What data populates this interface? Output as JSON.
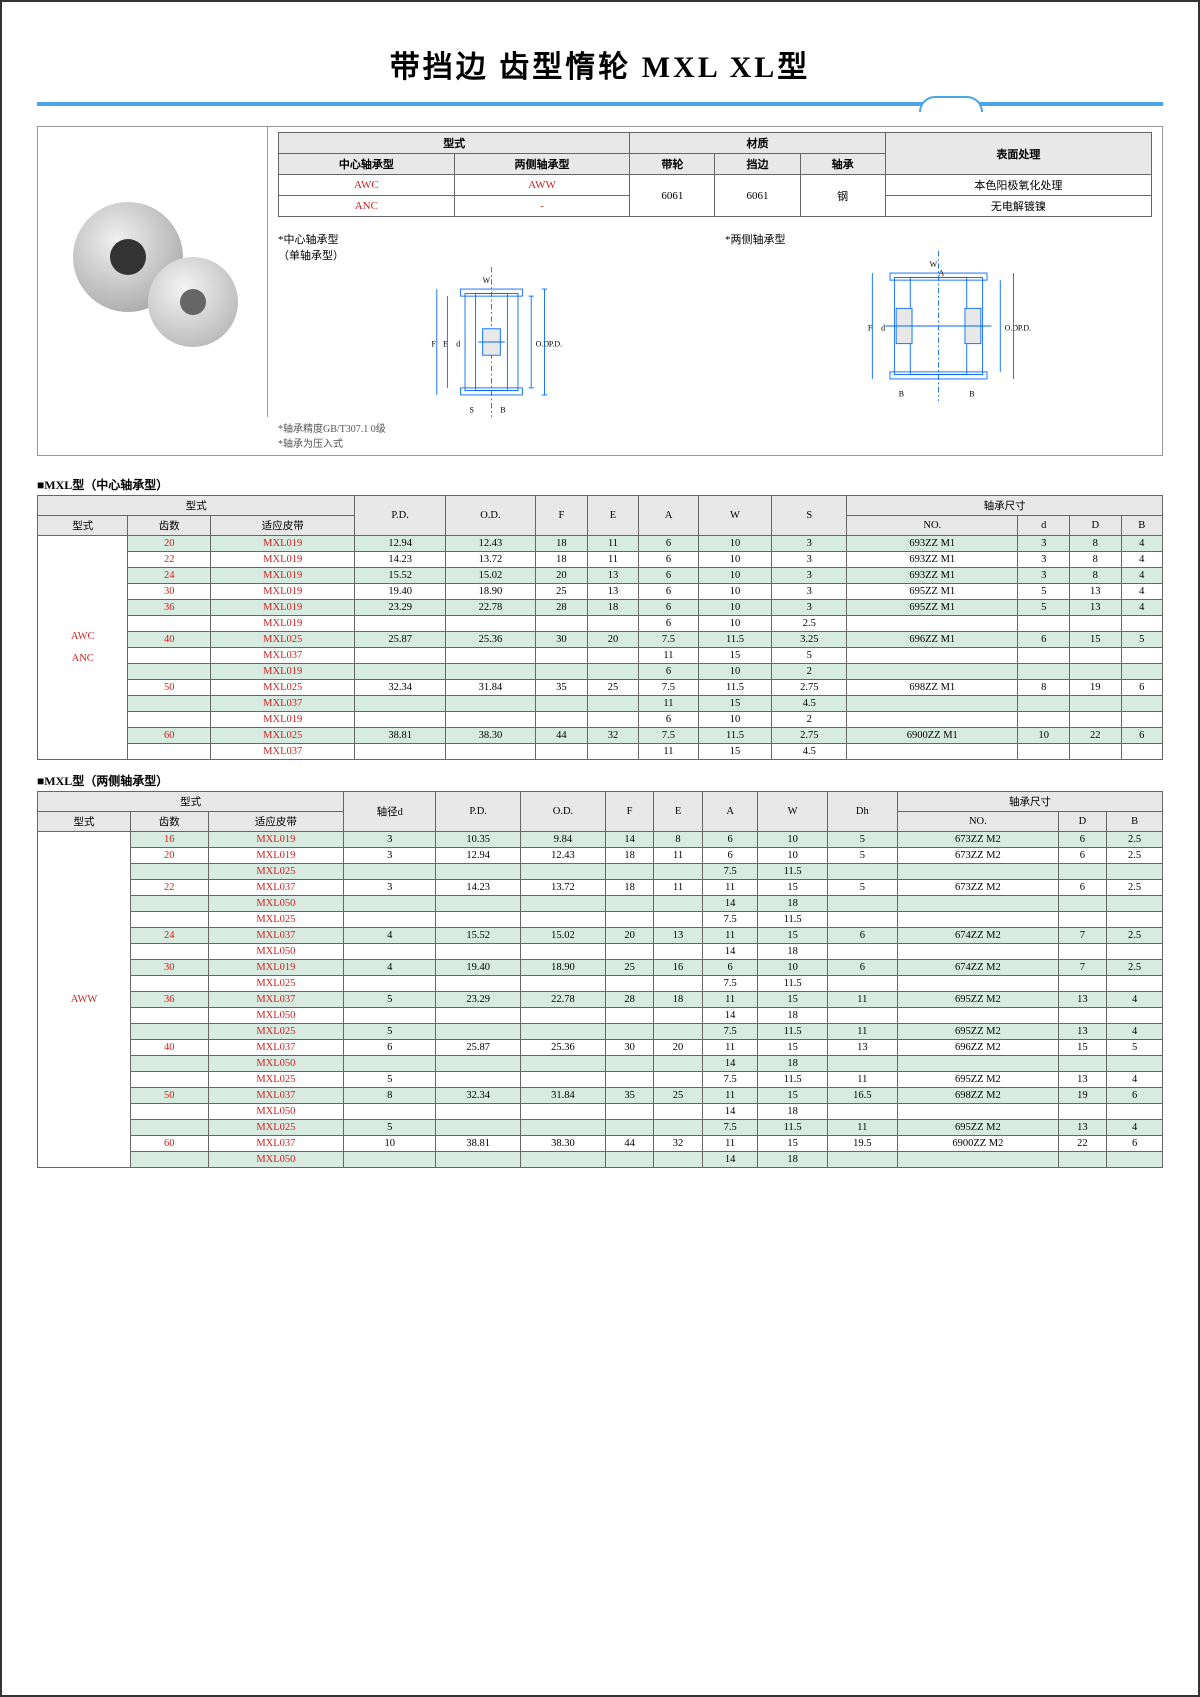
{
  "title": "带挡边 齿型惰轮 MXL XL型",
  "materialTable": {
    "headers": {
      "type": "型式",
      "center": "中心轴承型",
      "side": "两侧轴承型",
      "belt": "带轮",
      "flange": "挡边",
      "bearing": "轴承",
      "material": "材质",
      "surface": "表面处理"
    },
    "row1": {
      "c": "AWC",
      "s": "AWW",
      "belt": "6061",
      "flange": "6061",
      "bearing": "钢",
      "surf": "本色阳极氧化处理"
    },
    "row2": {
      "c": "ANC",
      "s": "-",
      "surf": "无电解镀镍"
    }
  },
  "diagLabels": {
    "center": "*中心轴承型\n（单轴承型）",
    "side": "*两侧轴承型",
    "dims": {
      "W": "W",
      "A": "A",
      "F": "F",
      "d": "d",
      "E": "E",
      "OD": "O.D.",
      "PD": "P.D.",
      "B": "B",
      "S": "S"
    }
  },
  "footnotes": {
    "f1": "*轴承精度GB/T307.1  0级",
    "f2": "*轴承为压入式"
  },
  "sec1Title": "■MXL型（中心轴承型）",
  "t1Headers": {
    "type": "型式",
    "form": "型式",
    "teeth": "齿数",
    "belt": "适应皮带",
    "PD": "P.D.",
    "OD": "O.D.",
    "F": "F",
    "E": "E",
    "A": "A",
    "W": "W",
    "S": "S",
    "bearing": "轴承尺寸",
    "NO": "NO.",
    "d": "d",
    "D": "D",
    "B": "B"
  },
  "t1TypeCol": "AWC\n\nANC",
  "t1Rows": [
    {
      "alt": true,
      "teeth": "20",
      "belt": "MXL019",
      "pd": "12.94",
      "od": "12.43",
      "f": "18",
      "e": "11",
      "a": "6",
      "w": "10",
      "s": "3",
      "no": "693ZZ  M1",
      "d": "3",
      "D": "8",
      "B": "4"
    },
    {
      "alt": false,
      "teeth": "22",
      "belt": "MXL019",
      "pd": "14.23",
      "od": "13.72",
      "f": "18",
      "e": "11",
      "a": "6",
      "w": "10",
      "s": "3",
      "no": "693ZZ  M1",
      "d": "3",
      "D": "8",
      "B": "4"
    },
    {
      "alt": true,
      "teeth": "24",
      "belt": "MXL019",
      "pd": "15.52",
      "od": "15.02",
      "f": "20",
      "e": "13",
      "a": "6",
      "w": "10",
      "s": "3",
      "no": "693ZZ  M1",
      "d": "3",
      "D": "8",
      "B": "4"
    },
    {
      "alt": false,
      "teeth": "30",
      "belt": "MXL019",
      "pd": "19.40",
      "od": "18.90",
      "f": "25",
      "e": "13",
      "a": "6",
      "w": "10",
      "s": "3",
      "no": "695ZZ  M1",
      "d": "5",
      "D": "13",
      "B": "4"
    },
    {
      "alt": true,
      "teeth": "36",
      "belt": "MXL019",
      "pd": "23.29",
      "od": "22.78",
      "f": "28",
      "e": "18",
      "a": "6",
      "w": "10",
      "s": "3",
      "no": "695ZZ  M1",
      "d": "5",
      "D": "13",
      "B": "4"
    },
    {
      "alt": false,
      "teeth": "",
      "belt": "MXL019",
      "pd": "",
      "od": "",
      "f": "",
      "e": "",
      "a": "6",
      "w": "10",
      "s": "2.5",
      "no": "",
      "d": "",
      "D": "",
      "B": ""
    },
    {
      "alt": true,
      "teeth": "40",
      "belt": "MXL025",
      "pd": "25.87",
      "od": "25.36",
      "f": "30",
      "e": "20",
      "a": "7.5",
      "w": "11.5",
      "s": "3.25",
      "no": "696ZZ  M1",
      "d": "6",
      "D": "15",
      "B": "5"
    },
    {
      "alt": false,
      "teeth": "",
      "belt": "MXL037",
      "pd": "",
      "od": "",
      "f": "",
      "e": "",
      "a": "11",
      "w": "15",
      "s": "5",
      "no": "",
      "d": "",
      "D": "",
      "B": ""
    },
    {
      "alt": true,
      "teeth": "",
      "belt": "MXL019",
      "pd": "",
      "od": "",
      "f": "",
      "e": "",
      "a": "6",
      "w": "10",
      "s": "2",
      "no": "",
      "d": "",
      "D": "",
      "B": ""
    },
    {
      "alt": false,
      "teeth": "50",
      "belt": "MXL025",
      "pd": "32.34",
      "od": "31.84",
      "f": "35",
      "e": "25",
      "a": "7.5",
      "w": "11.5",
      "s": "2.75",
      "no": "698ZZ  M1",
      "d": "8",
      "D": "19",
      "B": "6"
    },
    {
      "alt": true,
      "teeth": "",
      "belt": "MXL037",
      "pd": "",
      "od": "",
      "f": "",
      "e": "",
      "a": "11",
      "w": "15",
      "s": "4.5",
      "no": "",
      "d": "",
      "D": "",
      "B": ""
    },
    {
      "alt": false,
      "teeth": "",
      "belt": "MXL019",
      "pd": "",
      "od": "",
      "f": "",
      "e": "",
      "a": "6",
      "w": "10",
      "s": "2",
      "no": "",
      "d": "",
      "D": "",
      "B": ""
    },
    {
      "alt": true,
      "teeth": "60",
      "belt": "MXL025",
      "pd": "38.81",
      "od": "38.30",
      "f": "44",
      "e": "32",
      "a": "7.5",
      "w": "11.5",
      "s": "2.75",
      "no": "6900ZZ M1",
      "d": "10",
      "D": "22",
      "B": "6"
    },
    {
      "alt": false,
      "teeth": "",
      "belt": "MXL037",
      "pd": "",
      "od": "",
      "f": "",
      "e": "",
      "a": "11",
      "w": "15",
      "s": "4.5",
      "no": "",
      "d": "",
      "D": "",
      "B": ""
    }
  ],
  "sec2Title": "■MXL型（两侧轴承型）",
  "t2Headers": {
    "type": "型式",
    "form": "型式",
    "teeth": "齿数",
    "belt": "适应皮带",
    "shaft": "轴径d",
    "PD": "P.D.",
    "OD": "O.D.",
    "F": "F",
    "E": "E",
    "A": "A",
    "W": "W",
    "Dh": "Dh",
    "bearing": "轴承尺寸",
    "NO": "NO.",
    "D": "D",
    "B": "B"
  },
  "t2TypeCol": "AWW",
  "t2Rows": [
    {
      "alt": true,
      "teeth": "16",
      "belt": "MXL019",
      "shaft": "3",
      "pd": "10.35",
      "od": "9.84",
      "f": "14",
      "e": "8",
      "a": "6",
      "w": "10",
      "dh": "5",
      "no": "673ZZ  M2",
      "D": "6",
      "B": "2.5"
    },
    {
      "alt": false,
      "teeth": "20",
      "belt": "MXL019",
      "shaft": "3",
      "pd": "12.94",
      "od": "12.43",
      "f": "18",
      "e": "11",
      "a": "6",
      "w": "10",
      "dh": "5",
      "no": "673ZZ  M2",
      "D": "6",
      "B": "2.5"
    },
    {
      "alt": true,
      "teeth": "",
      "belt": "MXL025",
      "shaft": "",
      "pd": "",
      "od": "",
      "f": "",
      "e": "",
      "a": "7.5",
      "w": "11.5",
      "dh": "",
      "no": "",
      "D": "",
      "B": ""
    },
    {
      "alt": false,
      "teeth": "22",
      "belt": "MXL037",
      "shaft": "3",
      "pd": "14.23",
      "od": "13.72",
      "f": "18",
      "e": "11",
      "a": "11",
      "w": "15",
      "dh": "5",
      "no": "673ZZ  M2",
      "D": "6",
      "B": "2.5"
    },
    {
      "alt": true,
      "teeth": "",
      "belt": "MXL050",
      "shaft": "",
      "pd": "",
      "od": "",
      "f": "",
      "e": "",
      "a": "14",
      "w": "18",
      "dh": "",
      "no": "",
      "D": "",
      "B": ""
    },
    {
      "alt": false,
      "teeth": "",
      "belt": "MXL025",
      "shaft": "",
      "pd": "",
      "od": "",
      "f": "",
      "e": "",
      "a": "7.5",
      "w": "11.5",
      "dh": "",
      "no": "",
      "D": "",
      "B": ""
    },
    {
      "alt": true,
      "teeth": "24",
      "belt": "MXL037",
      "shaft": "4",
      "pd": "15.52",
      "od": "15.02",
      "f": "20",
      "e": "13",
      "a": "11",
      "w": "15",
      "dh": "6",
      "no": "674ZZ  M2",
      "D": "7",
      "B": "2.5"
    },
    {
      "alt": false,
      "teeth": "",
      "belt": "MXL050",
      "shaft": "",
      "pd": "",
      "od": "",
      "f": "",
      "e": "",
      "a": "14",
      "w": "18",
      "dh": "",
      "no": "",
      "D": "",
      "B": ""
    },
    {
      "alt": true,
      "teeth": "30",
      "belt": "MXL019",
      "shaft": "4",
      "pd": "19.40",
      "od": "18.90",
      "f": "25",
      "e": "16",
      "a": "6",
      "w": "10",
      "dh": "6",
      "no": "674ZZ  M2",
      "D": "7",
      "B": "2.5"
    },
    {
      "alt": false,
      "teeth": "",
      "belt": "MXL025",
      "shaft": "",
      "pd": "",
      "od": "",
      "f": "",
      "e": "",
      "a": "7.5",
      "w": "11.5",
      "dh": "",
      "no": "",
      "D": "",
      "B": ""
    },
    {
      "alt": true,
      "teeth": "36",
      "belt": "MXL037",
      "shaft": "5",
      "pd": "23.29",
      "od": "22.78",
      "f": "28",
      "e": "18",
      "a": "11",
      "w": "15",
      "dh": "11",
      "no": "695ZZ  M2",
      "D": "13",
      "B": "4"
    },
    {
      "alt": false,
      "teeth": "",
      "belt": "MXL050",
      "shaft": "",
      "pd": "",
      "od": "",
      "f": "",
      "e": "",
      "a": "14",
      "w": "18",
      "dh": "",
      "no": "",
      "D": "",
      "B": ""
    },
    {
      "alt": true,
      "teeth": "",
      "belt": "MXL025",
      "shaft": "5",
      "pd": "",
      "od": "",
      "f": "",
      "e": "",
      "a": "7.5",
      "w": "11.5",
      "dh": "11",
      "no": "695ZZ  M2",
      "D": "13",
      "B": "4"
    },
    {
      "alt": false,
      "teeth": "40",
      "belt": "MXL037",
      "shaft": "6",
      "pd": "25.87",
      "od": "25.36",
      "f": "30",
      "e": "20",
      "a": "11",
      "w": "15",
      "dh": "13",
      "no": "696ZZ  M2",
      "D": "15",
      "B": "5"
    },
    {
      "alt": true,
      "teeth": "",
      "belt": "MXL050",
      "shaft": "",
      "pd": "",
      "od": "",
      "f": "",
      "e": "",
      "a": "14",
      "w": "18",
      "dh": "",
      "no": "",
      "D": "",
      "B": ""
    },
    {
      "alt": false,
      "teeth": "",
      "belt": "MXL025",
      "shaft": "5",
      "pd": "",
      "od": "",
      "f": "",
      "e": "",
      "a": "7.5",
      "w": "11.5",
      "dh": "11",
      "no": "695ZZ  M2",
      "D": "13",
      "B": "4"
    },
    {
      "alt": true,
      "teeth": "50",
      "belt": "MXL037",
      "shaft": "8",
      "pd": "32.34",
      "od": "31.84",
      "f": "35",
      "e": "25",
      "a": "11",
      "w": "15",
      "dh": "16.5",
      "no": "698ZZ  M2",
      "D": "19",
      "B": "6"
    },
    {
      "alt": false,
      "teeth": "",
      "belt": "MXL050",
      "shaft": "",
      "pd": "",
      "od": "",
      "f": "",
      "e": "",
      "a": "14",
      "w": "18",
      "dh": "",
      "no": "",
      "D": "",
      "B": ""
    },
    {
      "alt": true,
      "teeth": "",
      "belt": "MXL025",
      "shaft": "5",
      "pd": "",
      "od": "",
      "f": "",
      "e": "",
      "a": "7.5",
      "w": "11.5",
      "dh": "11",
      "no": "695ZZ  M2",
      "D": "13",
      "B": "4"
    },
    {
      "alt": false,
      "teeth": "60",
      "belt": "MXL037",
      "shaft": "10",
      "pd": "38.81",
      "od": "38.30",
      "f": "44",
      "e": "32",
      "a": "11",
      "w": "15",
      "dh": "19.5",
      "no": "6900ZZ M2",
      "D": "22",
      "B": "6"
    },
    {
      "alt": true,
      "teeth": "",
      "belt": "MXL050",
      "shaft": "",
      "pd": "",
      "od": "",
      "f": "",
      "e": "",
      "a": "14",
      "w": "18",
      "dh": "",
      "no": "",
      "D": "",
      "B": ""
    }
  ]
}
